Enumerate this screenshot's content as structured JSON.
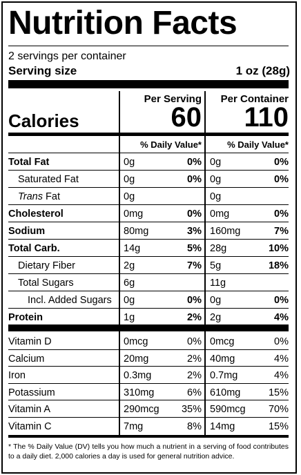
{
  "title": "Nutrition Facts",
  "servings_per_container": "2 servings per container",
  "serving_size_label": "Serving size",
  "serving_size_value": "1 oz (28g)",
  "col_headers": {
    "per_serving": "Per Serving",
    "per_container": "Per Container"
  },
  "calories": {
    "label": "Calories",
    "per_serving": "60",
    "per_container": "110"
  },
  "dv_header": "% Daily Value*",
  "nutrients": [
    {
      "name": "Total Fat",
      "bold": true,
      "indent": 0,
      "s_amt": "0g",
      "s_dv": "0%",
      "c_amt": "0g",
      "c_dv": "0%"
    },
    {
      "name": "Saturated Fat",
      "bold": false,
      "indent": 1,
      "s_amt": "0g",
      "s_dv": "0%",
      "c_amt": "0g",
      "c_dv": "0%"
    },
    {
      "name_italic": "Trans",
      "name": " Fat",
      "bold": false,
      "indent": 1,
      "s_amt": "0g",
      "s_dv": "",
      "c_amt": "0g",
      "c_dv": ""
    },
    {
      "name": "Cholesterol",
      "bold": true,
      "indent": 0,
      "s_amt": "0mg",
      "s_dv": "0%",
      "c_amt": "0mg",
      "c_dv": "0%"
    },
    {
      "name": "Sodium",
      "bold": true,
      "indent": 0,
      "s_amt": "80mg",
      "s_dv": "3%",
      "c_amt": "160mg",
      "c_dv": "7%"
    },
    {
      "name": "Total Carb.",
      "bold": true,
      "indent": 0,
      "s_amt": "14g",
      "s_dv": "5%",
      "c_amt": "28g",
      "c_dv": "10%"
    },
    {
      "name": "Dietary Fiber",
      "bold": false,
      "indent": 1,
      "s_amt": "2g",
      "s_dv": "7%",
      "c_amt": "5g",
      "c_dv": "18%"
    },
    {
      "name": "Total Sugars",
      "bold": false,
      "indent": 1,
      "s_amt": "6g",
      "s_dv": "",
      "c_amt": "11g",
      "c_dv": ""
    },
    {
      "name": "Incl. Added Sugars",
      "bold": false,
      "indent": 2,
      "s_amt": "0g",
      "s_dv": "0%",
      "c_amt": "0g",
      "c_dv": "0%"
    },
    {
      "name": "Protein",
      "bold": true,
      "indent": 0,
      "s_amt": "1g",
      "s_dv": "2%",
      "c_amt": "2g",
      "c_dv": "4%"
    }
  ],
  "vitamins": [
    {
      "name": "Vitamin D",
      "s_amt": "0mcg",
      "s_dv": "0%",
      "c_amt": "0mcg",
      "c_dv": "0%"
    },
    {
      "name": "Calcium",
      "s_amt": "20mg",
      "s_dv": "2%",
      "c_amt": "40mg",
      "c_dv": "4%"
    },
    {
      "name": "Iron",
      "s_amt": "0.3mg",
      "s_dv": "2%",
      "c_amt": "0.7mg",
      "c_dv": "4%"
    },
    {
      "name": "Potassium",
      "s_amt": "310mg",
      "s_dv": "6%",
      "c_amt": "610mg",
      "c_dv": "15%"
    },
    {
      "name": "Vitamin A",
      "s_amt": "290mcg",
      "s_dv": "35%",
      "c_amt": "590mcg",
      "c_dv": "70%"
    },
    {
      "name": "Vitamin C",
      "s_amt": "7mg",
      "s_dv": "8%",
      "c_amt": "14mg",
      "c_dv": "15%"
    }
  ],
  "footnote": "* The % Daily Value (DV) tells you how much a nutrient in a serving of food contributes to a daily diet. 2,000 calories a day is used for general nutrition advice."
}
